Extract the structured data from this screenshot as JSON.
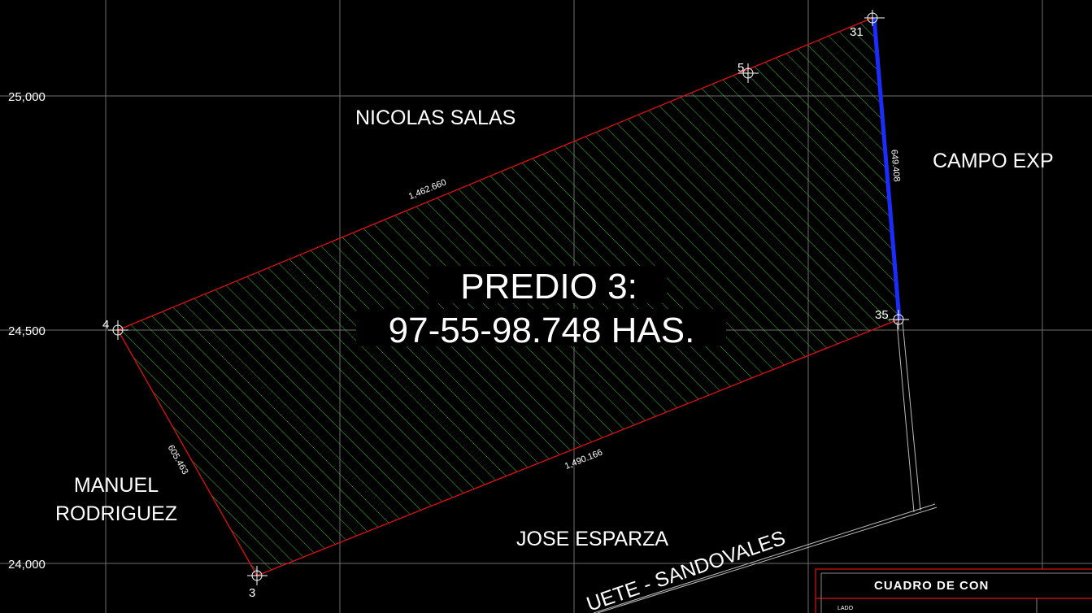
{
  "grid_labels": [
    "25,000",
    "24,500",
    "24,000"
  ],
  "points": [
    "31",
    "5",
    "4",
    "35",
    "3"
  ],
  "owners": {
    "north": "NICOLAS SALAS",
    "east": "CAMPO EXP",
    "west_1": "MANUEL",
    "west_2": "RODRIGUEZ",
    "south": "JOSE ESPARZA"
  },
  "road": "UETE - SANDOVALES",
  "parcel": {
    "name": "PREDIO 3:",
    "area": "97-55-98.748 HAS."
  },
  "distances": [
    "1,462.660",
    "649.408",
    "605.463",
    "1,490.166"
  ],
  "table": {
    "title": "CUADRO DE CON",
    "column": "LADO"
  }
}
